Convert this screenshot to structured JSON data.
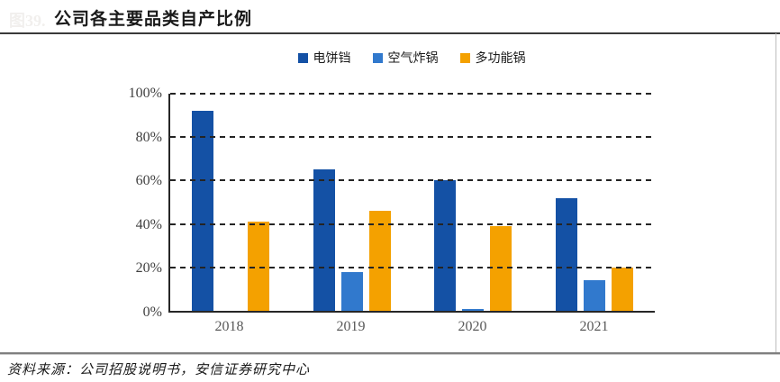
{
  "figure_label": "图39.",
  "header": {
    "title": "公司各主要品类自产比例"
  },
  "footer": {
    "source": "资料来源：公司招股说明书，安信证券研究中心"
  },
  "colors": {
    "series_1": "#1451a5",
    "series_2": "#3179cd",
    "series_3": "#f4a100",
    "gridline": "#242424",
    "axis": "#262626"
  },
  "chart_data": {
    "type": "bar",
    "title": "公司各主要品类自产比例",
    "categories": [
      "2018",
      "2019",
      "2020",
      "2021"
    ],
    "series": [
      {
        "name": "电饼铛",
        "color": "#1451a5",
        "values": [
          92,
          65,
          60,
          52
        ]
      },
      {
        "name": "空气炸锅",
        "color": "#3179cd",
        "values": [
          0,
          18,
          1,
          14
        ]
      },
      {
        "name": "多功能锅",
        "color": "#f4a100",
        "values": [
          41,
          46,
          39,
          20
        ]
      }
    ],
    "xlabel": "",
    "ylabel": "",
    "ylim": [
      0,
      100
    ],
    "yticks": [
      {
        "value": 0,
        "label": "0%"
      },
      {
        "value": 20,
        "label": "20%"
      },
      {
        "value": 40,
        "label": "40%"
      },
      {
        "value": 60,
        "label": "60%"
      },
      {
        "value": 80,
        "label": "80%"
      },
      {
        "value": 100,
        "label": "100%"
      }
    ],
    "grid": "dashed-horizontal",
    "legend_position": "top-center"
  }
}
